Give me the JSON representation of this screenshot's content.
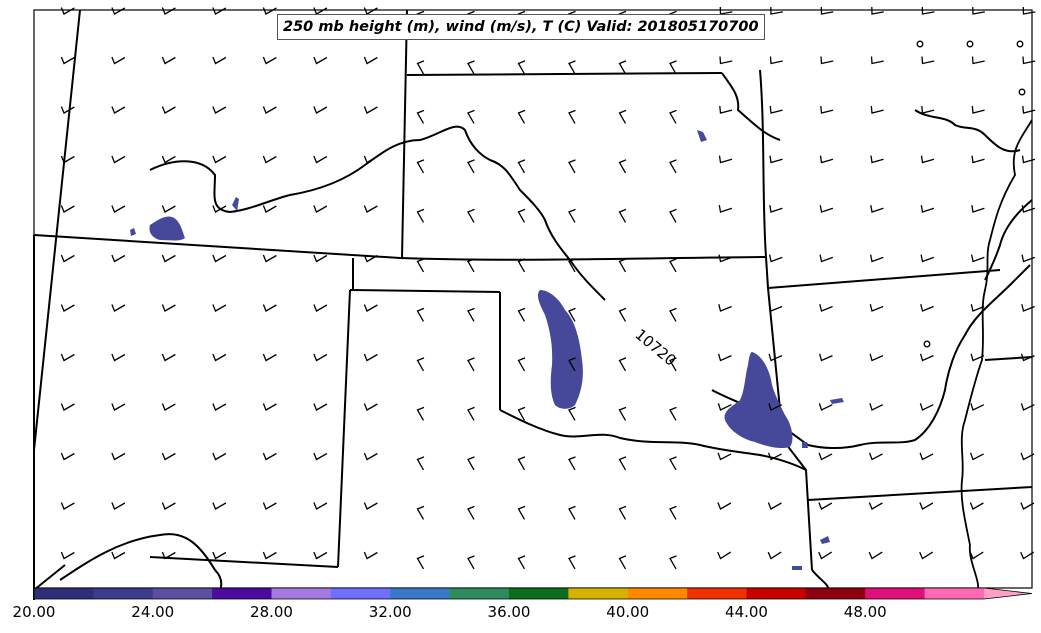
{
  "title": "250 mb height (m), wind (m/s), T (C) Valid: 201805170700",
  "contour_label": "10720",
  "colorbar": {
    "tick_labels": [
      "20.00",
      "24.00",
      "28.00",
      "32.00",
      "36.00",
      "40.00",
      "44.00",
      "48.00"
    ],
    "colors": [
      "#2e2f7a",
      "#3d3b8e",
      "#5a4fa0",
      "#4b0aa0",
      "#a57ae0",
      "#7070ff",
      "#3a78c8",
      "#2f8a5c",
      "#0a6e1e",
      "#d8b200",
      "#ff8a00",
      "#f03000",
      "#c80000",
      "#8c0010",
      "#e0107a",
      "#ff69b4"
    ]
  },
  "colors": {
    "wind_speed_fill": "#46499a",
    "border": "#000000"
  }
}
